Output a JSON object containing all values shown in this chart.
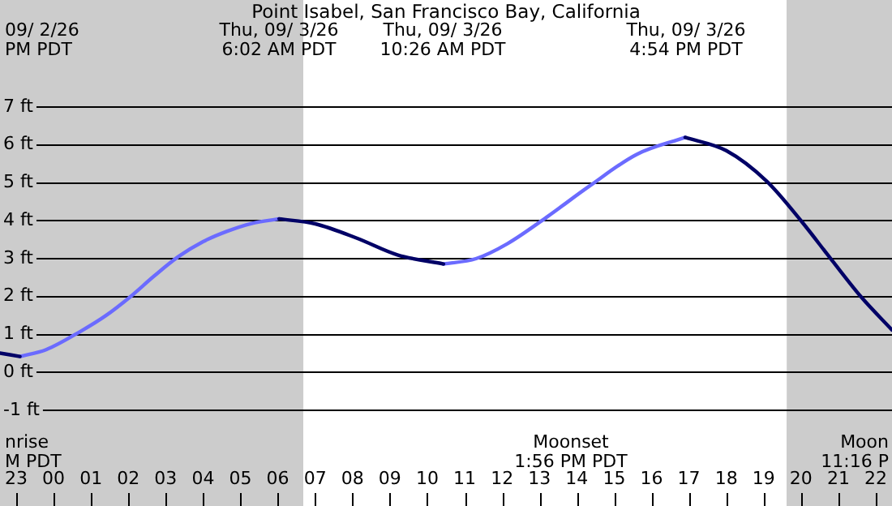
{
  "chart_data": {
    "type": "line",
    "title": "Point Isabel, San Francisco Bay, California",
    "x": [
      "--09-02T22:34",
      "--09-02T23:06",
      "--09-02T23:48",
      "--09-03T00:44",
      "--09-03T01:24",
      "--09-03T02:02",
      "--09-03T02:42",
      "--09-03T03:20",
      "--09-03T04:00",
      "--09-03T04:38",
      "--09-03T05:18",
      "--09-03T06:02",
      "--09-03T07:00",
      "--09-03T08:07",
      "--09-03T09:12",
      "--09-03T10:26",
      "--09-03T11:18",
      "--09-03T12:09",
      "--09-03T13:12",
      "--09-03T14:19",
      "--09-03T15:36",
      "--09-03T16:54",
      "--09-03T18:00",
      "--09-03T19:05",
      "--09-03T20:00",
      "--09-03T20:49",
      "--09-03T21:36",
      "--09-03T22:26"
    ],
    "series": [
      {
        "color": "#000066",
        "values": [
          0.51,
          0.42,
          null,
          null,
          null,
          null,
          null,
          null,
          null,
          null,
          null,
          4.05,
          3.92,
          3.54,
          3.1,
          2.86,
          null,
          null,
          null,
          null,
          null,
          6.2,
          5.85,
          5.04,
          4.0,
          2.97,
          2.0,
          1.12
        ]
      },
      {
        "color": "#6b6bff",
        "values": [
          null,
          0.42,
          0.6,
          1.09,
          1.5,
          1.98,
          2.55,
          3.05,
          3.45,
          3.72,
          3.93,
          4.05,
          null,
          null,
          null,
          2.86,
          3.0,
          3.4,
          4.1,
          4.9,
          5.75,
          6.2,
          null,
          null,
          null,
          null,
          null,
          null
        ]
      }
    ],
    "xlim": [
      "--09-02T22:34",
      "--09-03T22:26"
    ],
    "xticks": [
      {
        "value": "--09-02T23:00",
        "label": "23"
      },
      {
        "value": "--09-03T00:00",
        "label": "00"
      },
      {
        "value": "--09-03T01:00",
        "label": "01"
      },
      {
        "value": "--09-03T02:00",
        "label": "02"
      },
      {
        "value": "--09-03T03:00",
        "label": "03"
      },
      {
        "value": "--09-03T04:00",
        "label": "04"
      },
      {
        "value": "--09-03T05:00",
        "label": "05"
      },
      {
        "value": "--09-03T06:00",
        "label": "06"
      },
      {
        "value": "--09-03T07:00",
        "label": "07"
      },
      {
        "value": "--09-03T08:00",
        "label": "08"
      },
      {
        "value": "--09-03T09:00",
        "label": "09"
      },
      {
        "value": "--09-03T10:00",
        "label": "10"
      },
      {
        "value": "--09-03T11:00",
        "label": "11"
      },
      {
        "value": "--09-03T12:00",
        "label": "12"
      },
      {
        "value": "--09-03T13:00",
        "label": "13"
      },
      {
        "value": "--09-03T14:00",
        "label": "14"
      },
      {
        "value": "--09-03T15:00",
        "label": "15"
      },
      {
        "value": "--09-03T16:00",
        "label": "16"
      },
      {
        "value": "--09-03T17:00",
        "label": "17"
      },
      {
        "value": "--09-03T18:00",
        "label": "18"
      },
      {
        "value": "--09-03T19:00",
        "label": "19"
      },
      {
        "value": "--09-03T20:00",
        "label": "20"
      },
      {
        "value": "--09-03T21:00",
        "label": "21"
      },
      {
        "value": "--09-03T22:00",
        "label": "22"
      }
    ],
    "ylim": [
      -1,
      7
    ],
    "yticks": [
      {
        "value": -1,
        "label": "-1 ft"
      },
      {
        "value": 0,
        "label": "0 ft"
      },
      {
        "value": 1,
        "label": "1 ft"
      },
      {
        "value": 2,
        "label": "2 ft"
      },
      {
        "value": 3,
        "label": "3 ft"
      },
      {
        "value": 4,
        "label": "4 ft"
      },
      {
        "value": 5,
        "label": "5 ft"
      },
      {
        "value": 6,
        "label": "6 ft"
      },
      {
        "value": 7,
        "label": "7 ft"
      }
    ],
    "grid": "y",
    "legend": false,
    "marker": "none",
    "line_style": "solid",
    "bands": [
      {
        "axis": "x",
        "from": "--09-02T22:34",
        "to": "--09-03T06:41",
        "color": "#cccccc"
      },
      {
        "axis": "x",
        "from": "--09-03T19:37",
        "to": "--09-03T22:26",
        "color": "#cccccc"
      }
    ],
    "annotations": [
      "09/ 2/26\nPM PDT",
      "Thu, 09/ 3/26\n6:02 AM PDT",
      "Thu, 09/ 3/26\n10:26 AM PDT",
      "Thu, 09/ 3/26\n4:54 PM PDT",
      "nrise\nM PDT",
      "Moonset\n1:56 PM PDT",
      "Moon\n11:16 P"
    ]
  }
}
